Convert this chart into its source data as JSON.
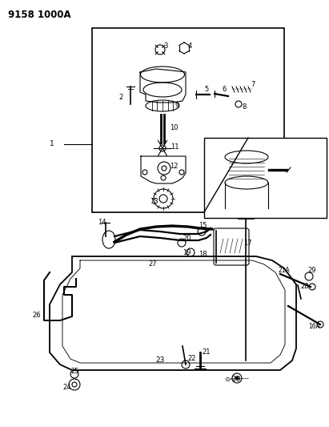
{
  "title": "9158 1000A",
  "bg_color": "#ffffff",
  "line_color": "#000000",
  "figsize": [
    4.11,
    5.33
  ],
  "dpi": 100
}
